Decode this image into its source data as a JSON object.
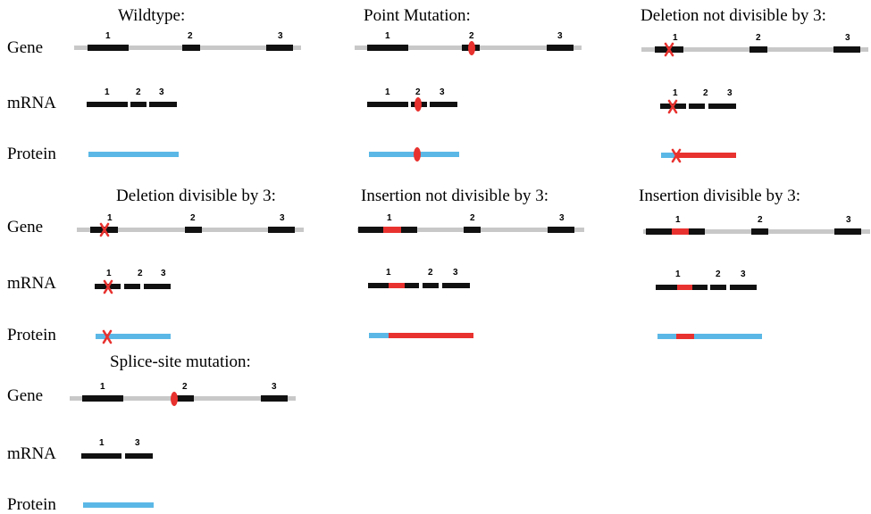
{
  "labels": {
    "gene": "Gene",
    "mrna": "mRNA",
    "protein": "Protein"
  },
  "colors": {
    "intron": "#c8c8c8",
    "exon": "#111111",
    "protein": "#5bb8e6",
    "mutation": "#e8322f"
  },
  "panels": [
    {
      "title": "Wildtype:",
      "gene_numbers": [
        "1",
        "2",
        "3"
      ],
      "mrna_numbers": [
        "1",
        "2",
        "3"
      ]
    },
    {
      "title": "Point Mutation:",
      "gene_numbers": [
        "1",
        "2",
        "3"
      ],
      "mrna_numbers": [
        "1",
        "2",
        "3"
      ]
    },
    {
      "title": "Deletion not divisible by 3:",
      "gene_numbers": [
        "1",
        "2",
        "3"
      ],
      "mrna_numbers": [
        "1",
        "2",
        "3"
      ]
    },
    {
      "title": "Deletion divisible by 3:",
      "gene_numbers": [
        "1",
        "2",
        "3"
      ],
      "mrna_numbers": [
        "1",
        "2",
        "3"
      ]
    },
    {
      "title": "Insertion not divisible by 3:",
      "gene_numbers": [
        "1",
        "2",
        "3"
      ],
      "mrna_numbers": [
        "1",
        "2",
        "3"
      ]
    },
    {
      "title": "Insertion divisible by 3:",
      "gene_numbers": [
        "1",
        "2",
        "3"
      ],
      "mrna_numbers": [
        "1",
        "2",
        "3"
      ]
    },
    {
      "title": "Splice-site mutation:",
      "gene_numbers": [
        "1",
        "2",
        "3"
      ],
      "mrna_numbers": [
        "1",
        "3"
      ]
    }
  ]
}
